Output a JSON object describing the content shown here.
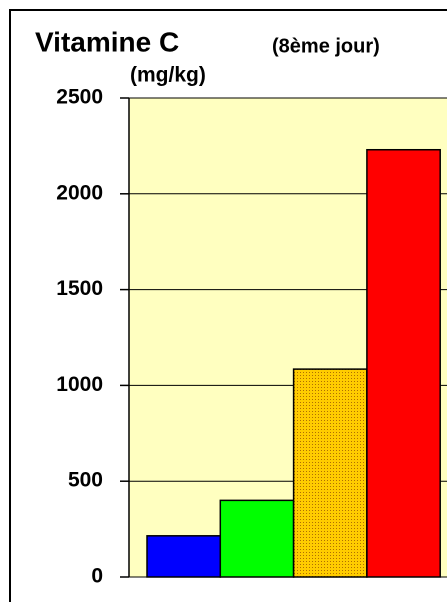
{
  "chart_data": {
    "type": "bar",
    "title": "Vitamine C",
    "subtitle": "(8ème jour)",
    "y_label": "(mg/kg)",
    "categories": [
      null,
      null,
      null,
      null
    ],
    "values": [
      215,
      400,
      1085,
      2230
    ],
    "colors": [
      "#0000ff",
      "#00ff00",
      "#ffcc00",
      "#ff0000"
    ],
    "ylim": [
      0,
      2500
    ],
    "yticks": [
      0,
      500,
      1000,
      1500,
      2000,
      2500
    ],
    "grid": true
  }
}
